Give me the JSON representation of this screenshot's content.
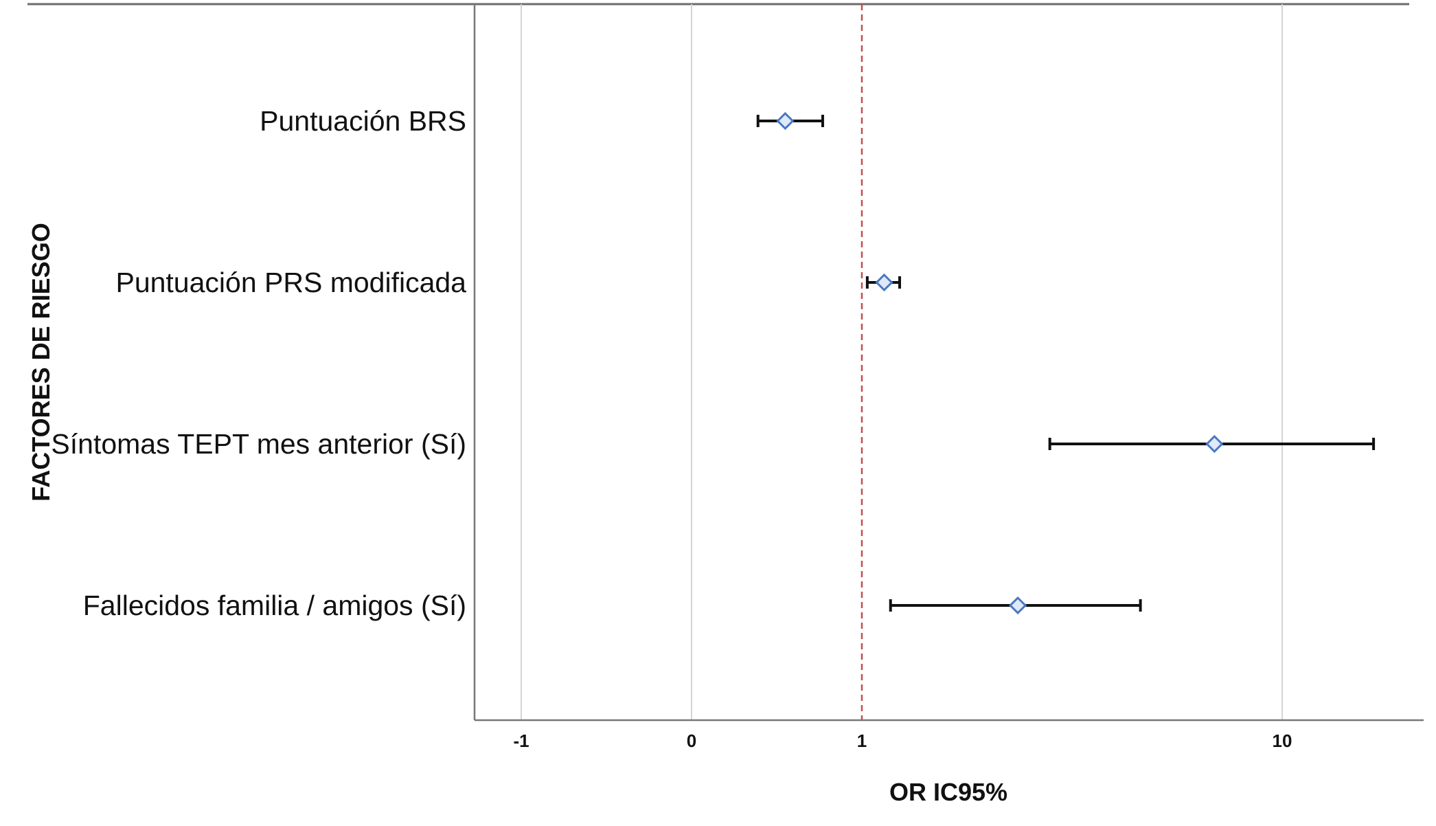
{
  "chart_data": {
    "type": "forest",
    "xlabel": "OR IC95%",
    "ylabel": "FACTORES DE RIESGO",
    "x_ticks": [
      "-1",
      "0",
      "1",
      "10"
    ],
    "reference_line": 1,
    "grid": "vertical",
    "colors": {
      "point": "#4a78c2",
      "error_bar": "#111111",
      "reference_line": "#c0504d",
      "grid": "#d4d4d4",
      "axis": "#777777"
    },
    "series": [
      {
        "label": "Puntuación BRS",
        "or": 0.55,
        "ci_low": 0.39,
        "ci_high": 0.77
      },
      {
        "label": "Puntuación PRS modificada",
        "or": 1.13,
        "ci_low": 1.03,
        "ci_high": 1.23
      },
      {
        "label": "Síntomas TEPT mes anterior (Sí)",
        "or": 6.9,
        "ci_low": 2.8,
        "ci_high": 16.5
      },
      {
        "label": "Fallecidos familia / amigos (Sí)",
        "or": 2.35,
        "ci_low": 1.17,
        "ci_high": 4.6
      }
    ]
  }
}
